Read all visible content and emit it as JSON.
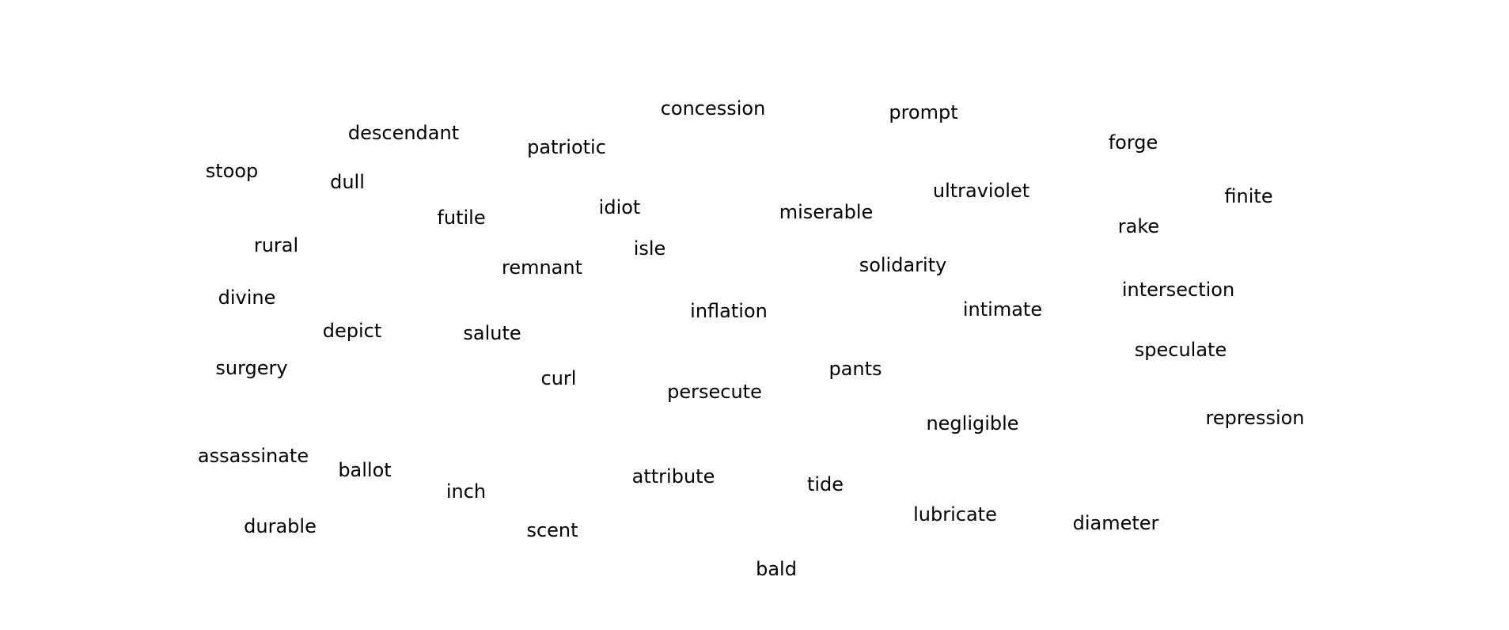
{
  "words": [
    "concession",
    "prompt",
    "descendant",
    "patriotic",
    "forge",
    "stoop",
    "dull",
    "ultraviolet",
    "finite",
    "futile",
    "idiot",
    "miserable",
    "rake",
    "rural",
    "isle",
    "remnant",
    "solidarity",
    "divine",
    "intersection",
    "inflation",
    "intimate",
    "depict",
    "salute",
    "speculate",
    "surgery",
    "pants",
    "curl",
    "persecute",
    "repression",
    "negligible",
    "assassinate",
    "ballot",
    "attribute",
    "inch",
    "tide",
    "lubricate",
    "durable",
    "diameter",
    "scent",
    "bald"
  ]
}
